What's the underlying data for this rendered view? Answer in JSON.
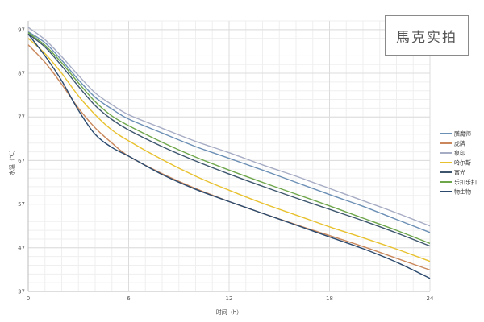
{
  "watermark": "馬克实拍",
  "chart_data": {
    "type": "line",
    "title": "",
    "xlabel": "时间（h）",
    "ylabel": "水温（℃）",
    "xlim": [
      0,
      24
    ],
    "ylim": [
      37,
      99
    ],
    "x_ticks": [
      0,
      6,
      12,
      18,
      24
    ],
    "y_ticks": [
      37,
      47,
      57,
      67,
      77,
      87,
      97
    ],
    "grid": true,
    "legend_position": "right",
    "x": [
      0,
      1,
      2,
      3,
      4,
      5,
      6,
      8,
      10,
      12,
      14,
      16,
      18,
      20,
      22,
      24
    ],
    "series": [
      {
        "name": "膳魔师",
        "color": "#6b8fb5",
        "values": [
          96.5,
          94.0,
          90.0,
          85.5,
          81.5,
          78.8,
          76.5,
          73.3,
          70.2,
          67.5,
          64.8,
          62.0,
          59.2,
          56.5,
          53.5,
          50.5
        ]
      },
      {
        "name": "虎牌",
        "color": "#c9875b",
        "values": [
          93.5,
          89.5,
          84.5,
          79.0,
          74.5,
          71.0,
          68.0,
          64.0,
          60.6,
          57.6,
          54.9,
          52.3,
          49.8,
          47.3,
          44.6,
          41.9
        ]
      },
      {
        "name": "象印",
        "color": "#a6acc4",
        "values": [
          97.5,
          94.7,
          90.8,
          86.5,
          82.5,
          79.8,
          77.5,
          74.4,
          71.4,
          68.8,
          66.0,
          63.4,
          60.6,
          57.8,
          55.0,
          52.0
        ]
      },
      {
        "name": "哈尔斯",
        "color": "#e8c12e",
        "values": [
          95.0,
          91.5,
          87.0,
          81.8,
          77.5,
          74.0,
          71.5,
          67.2,
          63.4,
          60.2,
          57.2,
          54.5,
          51.8,
          49.3,
          46.7,
          43.9
        ]
      },
      {
        "name": "富光",
        "color": "#3d566e",
        "values": [
          96.0,
          93.0,
          88.7,
          84.0,
          79.6,
          76.4,
          74.0,
          70.2,
          66.9,
          63.9,
          61.1,
          58.4,
          55.8,
          53.2,
          50.4,
          47.4
        ]
      },
      {
        "name": "乐扣乐扣",
        "color": "#6ea64b",
        "values": [
          96.3,
          93.4,
          89.4,
          84.8,
          80.5,
          77.2,
          75.0,
          71.2,
          67.8,
          64.8,
          62.0,
          59.3,
          56.6,
          53.8,
          51.0,
          48.0
        ]
      },
      {
        "name": "物生物",
        "color": "#2b4a6e",
        "values": [
          96.0,
          91.0,
          85.3,
          78.5,
          73.0,
          70.0,
          68.0,
          63.8,
          60.4,
          57.6,
          54.9,
          52.2,
          49.5,
          46.8,
          43.7,
          40.0
        ]
      }
    ]
  }
}
